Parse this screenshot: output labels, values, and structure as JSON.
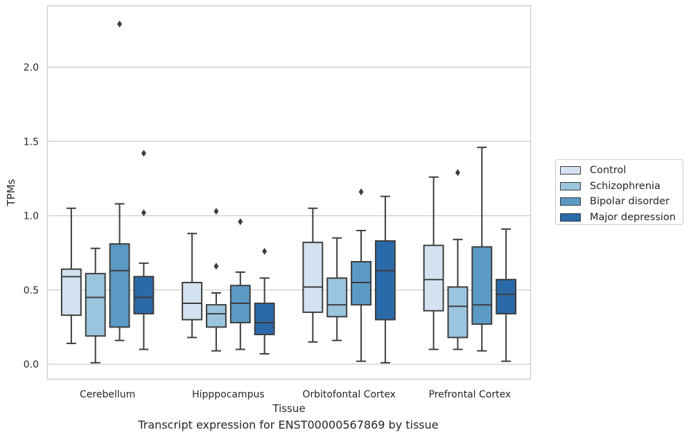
{
  "caption": "Transcript expression for ENST00000567869 by tissue",
  "chart_data": {
    "type": "boxplot",
    "xlabel": "Tissue",
    "ylabel": "TPMs",
    "ylim": [
      -0.1,
      2.4
    ],
    "yticks": [
      "0.0",
      "0.5",
      "1.0",
      "1.5",
      "2.0"
    ],
    "grid": "horizontal",
    "legend_position": "right",
    "categories": [
      "Cerebellum",
      "Hipppocampus",
      "Orbitofontal Cortex",
      "Prefrontal Cortex"
    ],
    "series": [
      {
        "name": "Control",
        "color": "#d4e2f2",
        "boxes": [
          {
            "whislo": 0.14,
            "q1": 0.33,
            "med": 0.59,
            "q3": 0.64,
            "whishi": 1.05,
            "fliers": []
          },
          {
            "whislo": 0.18,
            "q1": 0.3,
            "med": 0.41,
            "q3": 0.55,
            "whishi": 0.88,
            "fliers": []
          },
          {
            "whislo": 0.15,
            "q1": 0.35,
            "med": 0.52,
            "q3": 0.82,
            "whishi": 1.05,
            "fliers": []
          },
          {
            "whislo": 0.1,
            "q1": 0.36,
            "med": 0.57,
            "q3": 0.8,
            "whishi": 1.26,
            "fliers": []
          }
        ]
      },
      {
        "name": "Schizophrenia",
        "color": "#9bc5de",
        "boxes": [
          {
            "whislo": 0.01,
            "q1": 0.19,
            "med": 0.45,
            "q3": 0.61,
            "whishi": 0.78,
            "fliers": []
          },
          {
            "whislo": 0.09,
            "q1": 0.25,
            "med": 0.34,
            "q3": 0.4,
            "whishi": 0.48,
            "fliers": [
              0.66,
              1.03
            ]
          },
          {
            "whislo": 0.16,
            "q1": 0.32,
            "med": 0.4,
            "q3": 0.58,
            "whishi": 0.85,
            "fliers": []
          },
          {
            "whislo": 0.1,
            "q1": 0.18,
            "med": 0.39,
            "q3": 0.52,
            "whishi": 0.84,
            "fliers": [
              1.29
            ]
          }
        ]
      },
      {
        "name": "Bipolar disorder",
        "color": "#5b9ac5",
        "boxes": [
          {
            "whislo": 0.16,
            "q1": 0.25,
            "med": 0.63,
            "q3": 0.81,
            "whishi": 1.08,
            "fliers": [
              2.29
            ]
          },
          {
            "whislo": 0.1,
            "q1": 0.28,
            "med": 0.41,
            "q3": 0.53,
            "whishi": 0.62,
            "fliers": [
              0.96
            ]
          },
          {
            "whislo": 0.02,
            "q1": 0.4,
            "med": 0.55,
            "q3": 0.69,
            "whishi": 0.9,
            "fliers": [
              1.16
            ]
          },
          {
            "whislo": 0.09,
            "q1": 0.27,
            "med": 0.4,
            "q3": 0.79,
            "whishi": 1.46,
            "fliers": []
          }
        ]
      },
      {
        "name": "Major depression",
        "color": "#2b6aa8",
        "boxes": [
          {
            "whislo": 0.1,
            "q1": 0.34,
            "med": 0.45,
            "q3": 0.59,
            "whishi": 0.68,
            "fliers": [
              1.02,
              1.42
            ]
          },
          {
            "whislo": 0.07,
            "q1": 0.2,
            "med": 0.28,
            "q3": 0.41,
            "whishi": 0.58,
            "fliers": [
              0.76
            ]
          },
          {
            "whislo": 0.01,
            "q1": 0.3,
            "med": 0.63,
            "q3": 0.83,
            "whishi": 1.13,
            "fliers": []
          },
          {
            "whislo": 0.02,
            "q1": 0.34,
            "med": 0.47,
            "q3": 0.57,
            "whishi": 0.91,
            "fliers": []
          }
        ]
      }
    ]
  }
}
